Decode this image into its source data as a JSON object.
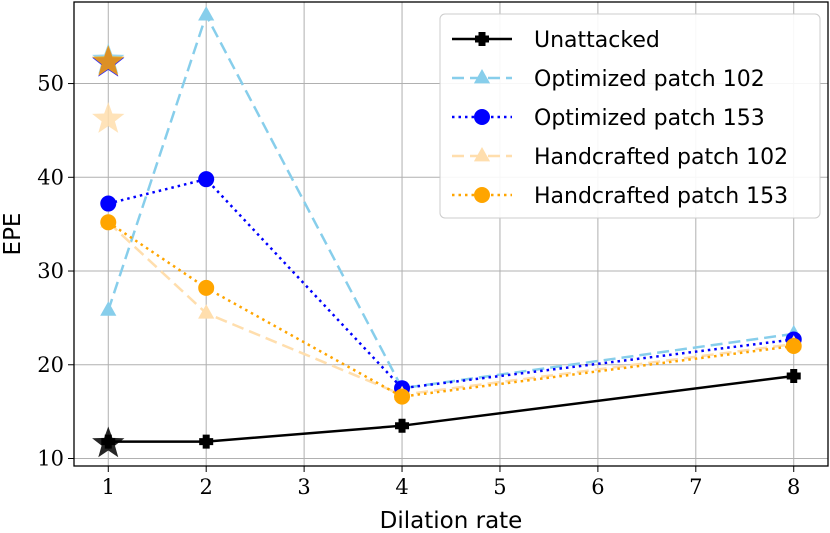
{
  "chart_data": {
    "type": "line",
    "xlabel": "Dilation rate",
    "ylabel": "EPE",
    "xlim": [
      0.65,
      8.35
    ],
    "ylim": [
      9.2,
      58.7
    ],
    "xticks": [
      1,
      2,
      3,
      4,
      5,
      6,
      7,
      8
    ],
    "yticks": [
      10,
      20,
      30,
      40,
      50
    ],
    "grid": true,
    "legend_position": "top-right",
    "series": [
      {
        "name": "Unattacked",
        "x": [
          1,
          2,
          4,
          8
        ],
        "values": [
          11.8,
          11.8,
          13.5,
          18.8
        ],
        "color": "#000000",
        "dash": "solid",
        "marker": "plus"
      },
      {
        "name": "Optimized patch 102",
        "x": [
          1,
          2,
          4,
          8
        ],
        "values": [
          25.8,
          57.3,
          17.5,
          23.3
        ],
        "color": "#87CEEB",
        "dash": "dashed",
        "marker": "triangle"
      },
      {
        "name": "Optimized patch 153",
        "x": [
          1,
          2,
          4,
          8
        ],
        "values": [
          37.2,
          39.8,
          17.5,
          22.7
        ],
        "color": "#0000FF",
        "dash": "dotted",
        "marker": "circle"
      },
      {
        "name": "Handcrafted patch 102",
        "x": [
          1,
          2,
          4,
          8
        ],
        "values": [
          35.2,
          25.5,
          16.8,
          22.2
        ],
        "color": "#FFDEAD",
        "dash": "dashed",
        "marker": "triangle"
      },
      {
        "name": "Handcrafted patch 153",
        "x": [
          1,
          2,
          4,
          8
        ],
        "values": [
          35.2,
          28.2,
          16.6,
          22.0
        ],
        "color": "#FFA500",
        "dash": "dotted",
        "marker": "circle"
      }
    ],
    "star_markers": [
      {
        "x": 1,
        "y": 11.6,
        "color": "#000000"
      },
      {
        "x": 1,
        "y": 52.5,
        "color": "#87CEEB"
      },
      {
        "x": 1,
        "y": 52.2,
        "color": "#0000FF"
      },
      {
        "x": 1,
        "y": 52.3,
        "color": "#FFA500"
      },
      {
        "x": 1,
        "y": 46.2,
        "color": "#FFDEAD"
      }
    ]
  }
}
